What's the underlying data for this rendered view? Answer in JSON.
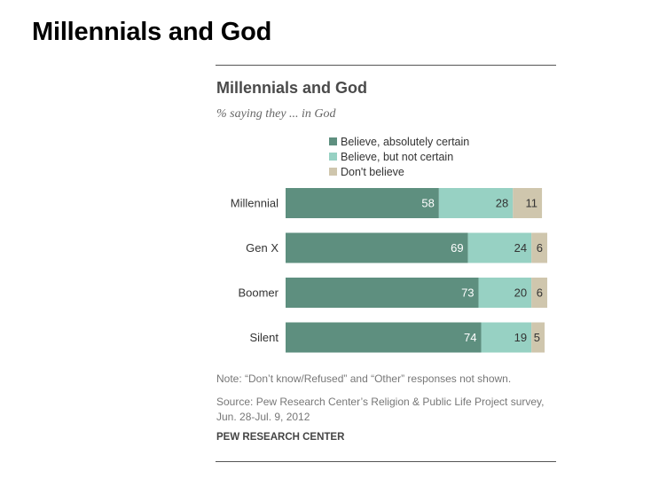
{
  "slide": {
    "title": "Millennials and God"
  },
  "chart_header": {
    "title": "Millennials and God",
    "subtitle": "% saying they ... in God"
  },
  "footer": {
    "note": "Note: “Don’t know/Refused” and “Other” responses not shown.",
    "source": "Source: Pew Research Center’s Religion & Public Life Project survey, Jun. 28-Jul. 9, 2012",
    "credit": "PEW RESEARCH CENTER"
  },
  "chart_data": {
    "type": "bar",
    "orientation": "horizontal",
    "stacked": true,
    "title": "Millennials and God",
    "subtitle": "% saying they ... in God",
    "categories": [
      "Millennial",
      "Gen X",
      "Boomer",
      "Silent"
    ],
    "series": [
      {
        "name": "Believe, absolutely certain",
        "color": "#5e8f7f",
        "values": [
          58,
          69,
          73,
          74
        ]
      },
      {
        "name": "Believe, but not certain",
        "color": "#97d1c3",
        "values": [
          28,
          24,
          20,
          19
        ]
      },
      {
        "name": "Don't believe",
        "color": "#cfc6ad",
        "values": [
          11,
          6,
          6,
          5
        ]
      }
    ],
    "data_labels": true,
    "grid": false,
    "legend_position": "top"
  }
}
